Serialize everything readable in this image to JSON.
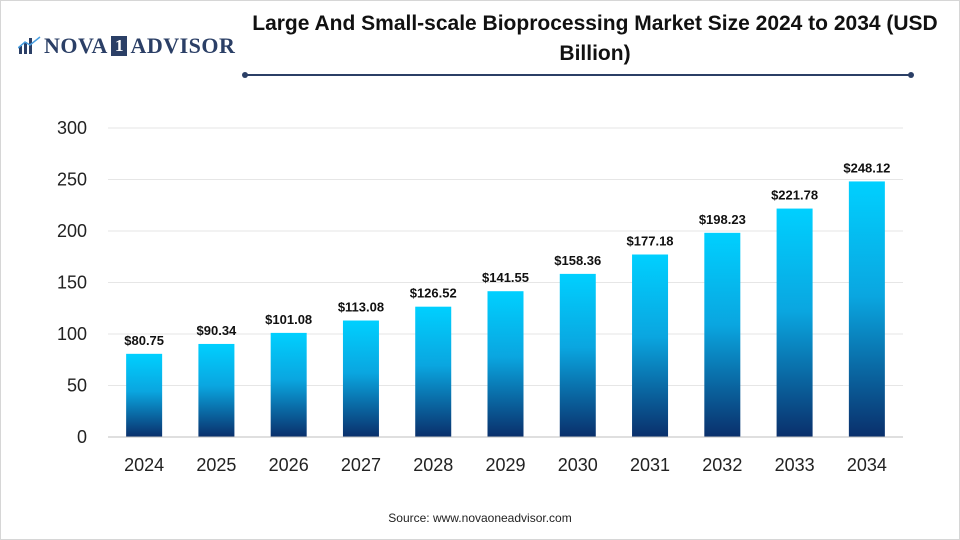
{
  "header": {
    "logo_text_1": "NOVA",
    "logo_digit": "1",
    "logo_text_2": "ADVISOR",
    "title": "Large And Small-scale Bioprocessing Market Size 2024 to 2034 (USD Billion)"
  },
  "footer": {
    "source": "Source: www.novaoneadvisor.com"
  },
  "colors": {
    "bar_top": "#00d0ff",
    "bar_bottom": "#0a2f6b",
    "accent": "#2b3f66",
    "grid": "#e6e6e6"
  },
  "chart_data": {
    "type": "bar",
    "title": "Large And Small-scale Bioprocessing Market Size 2024 to 2034 (USD Billion)",
    "xlabel": "",
    "ylabel": "",
    "ylim": [
      0,
      300
    ],
    "yticks": [
      0,
      50,
      100,
      150,
      200,
      250,
      300
    ],
    "grid": true,
    "legend": "none",
    "categories": [
      "2024",
      "2025",
      "2026",
      "2027",
      "2028",
      "2029",
      "2030",
      "2031",
      "2032",
      "2033",
      "2034"
    ],
    "values": [
      80.75,
      90.34,
      101.08,
      113.08,
      126.52,
      141.55,
      158.36,
      177.18,
      198.23,
      221.78,
      248.12
    ],
    "data_labels": [
      "$80.75",
      "$90.34",
      "$101.08",
      "$113.08",
      "$126.52",
      "$141.55",
      "$158.36",
      "$177.18",
      "$198.23",
      "$221.78",
      "$248.12"
    ]
  }
}
